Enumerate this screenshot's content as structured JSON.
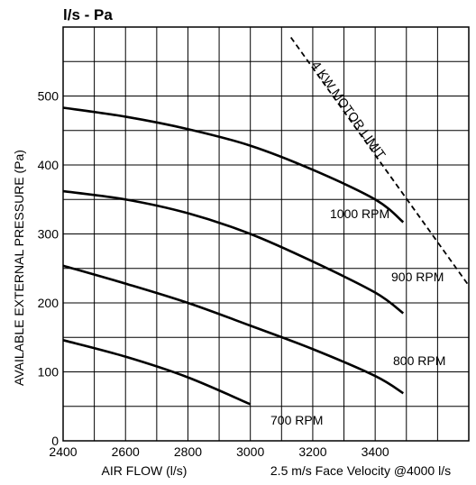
{
  "chart_data": {
    "type": "line",
    "title": "l/s - Pa",
    "xlabel": "AIR FLOW (l/s)",
    "ylabel": "AVAILABLE EXTERNAL PRESSURE (Pa)",
    "note": "2.5 m/s Face Velocity @4000 l/s",
    "xlim": [
      2400,
      3700
    ],
    "ylim": [
      0,
      600
    ],
    "x_ticks": [
      "2400",
      "2600",
      "2800",
      "3000",
      "3200",
      "3400"
    ],
    "y_ticks": [
      "0",
      "100",
      "200",
      "300",
      "400",
      "500"
    ],
    "grid": true,
    "series": [
      {
        "name": "1000 RPM",
        "x": [
          2400,
          2600,
          2800,
          3000,
          3200,
          3400,
          3490
        ],
        "y": [
          483,
          470,
          452,
          428,
          393,
          350,
          317
        ]
      },
      {
        "name": "900 RPM",
        "x": [
          2400,
          2600,
          2800,
          3000,
          3200,
          3400,
          3490
        ],
        "y": [
          362,
          350,
          330,
          300,
          260,
          215,
          185
        ]
      },
      {
        "name": "800 RPM",
        "x": [
          2400,
          2600,
          2800,
          3000,
          3200,
          3400,
          3490
        ],
        "y": [
          254,
          228,
          200,
          167,
          133,
          94,
          69
        ]
      },
      {
        "name": "700 RPM",
        "x": [
          2400,
          2600,
          2800,
          3000
        ],
        "y": [
          146,
          122,
          92,
          53
        ]
      }
    ],
    "limit_line": {
      "name": "4 KW MOTOR LIMIT",
      "x": [
        3130,
        3700
      ],
      "y": [
        585,
        225
      ],
      "style": "dashed"
    }
  }
}
